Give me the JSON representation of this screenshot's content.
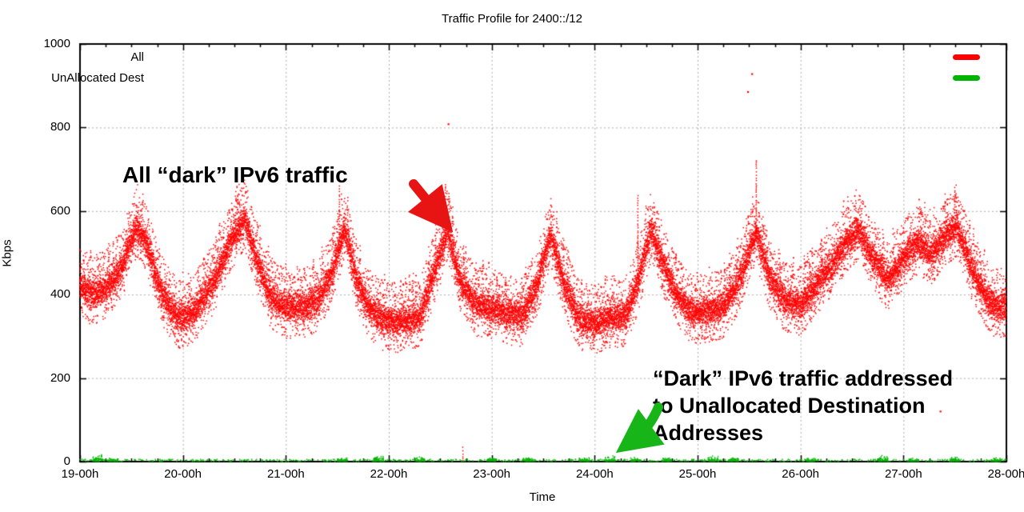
{
  "chart_data": {
    "type": "scatter",
    "title": "Traffic Profile for 2400::/12",
    "xlabel": "Time",
    "ylabel": "Kbps",
    "xlim": [
      19,
      28
    ],
    "ylim": [
      0,
      1000
    ],
    "grid": true,
    "legend_position": "top-right-inside",
    "xticks": [
      19,
      20,
      21,
      22,
      23,
      24,
      25,
      26,
      27,
      28
    ],
    "xtick_labels": [
      "19-00h",
      "20-00h",
      "21-00h",
      "22-00h",
      "23-00h",
      "24-00h",
      "25-00h",
      "26-00h",
      "27-00h",
      "28-00h"
    ],
    "yticks": [
      0,
      200,
      400,
      600,
      800,
      1000
    ],
    "ytick_labels": [
      "0",
      "200",
      "400",
      "600",
      "800",
      "1000"
    ],
    "minor_xtick_interval": 0.25,
    "series": [
      {
        "name": "All",
        "color": "#ff0000",
        "style": "dense-dot-band",
        "band_halfwidth": 32,
        "profile": [
          [
            19.0,
            430
          ],
          [
            19.1,
            400
          ],
          [
            19.25,
            415
          ],
          [
            19.4,
            460
          ],
          [
            19.55,
            565
          ],
          [
            19.65,
            520
          ],
          [
            19.8,
            400
          ],
          [
            19.95,
            345
          ],
          [
            20.1,
            355
          ],
          [
            20.3,
            430
          ],
          [
            20.45,
            520
          ],
          [
            20.6,
            585
          ],
          [
            20.72,
            480
          ],
          [
            20.85,
            395
          ],
          [
            21.0,
            370
          ],
          [
            21.15,
            370
          ],
          [
            21.3,
            385
          ],
          [
            21.45,
            450
          ],
          [
            21.57,
            560
          ],
          [
            21.68,
            440
          ],
          [
            21.8,
            370
          ],
          [
            21.95,
            340
          ],
          [
            22.1,
            335
          ],
          [
            22.3,
            345
          ],
          [
            22.45,
            460
          ],
          [
            22.57,
            555
          ],
          [
            22.7,
            430
          ],
          [
            22.85,
            375
          ],
          [
            23.0,
            370
          ],
          [
            23.15,
            355
          ],
          [
            23.3,
            350
          ],
          [
            23.45,
            430
          ],
          [
            23.57,
            545
          ],
          [
            23.7,
            430
          ],
          [
            23.85,
            340
          ],
          [
            24.0,
            330
          ],
          [
            24.15,
            345
          ],
          [
            24.3,
            350
          ],
          [
            24.42,
            430
          ],
          [
            24.55,
            555
          ],
          [
            24.67,
            470
          ],
          [
            24.8,
            395
          ],
          [
            24.95,
            355
          ],
          [
            25.1,
            360
          ],
          [
            25.25,
            370
          ],
          [
            25.4,
            430
          ],
          [
            25.57,
            550
          ],
          [
            25.7,
            440
          ],
          [
            25.85,
            385
          ],
          [
            26.0,
            375
          ],
          [
            26.15,
            420
          ],
          [
            26.3,
            470
          ],
          [
            26.45,
            530
          ],
          [
            26.57,
            550
          ],
          [
            26.7,
            490
          ],
          [
            26.85,
            435
          ],
          [
            27.0,
            490
          ],
          [
            27.15,
            525
          ],
          [
            27.28,
            495
          ],
          [
            27.42,
            545
          ],
          [
            27.52,
            560
          ],
          [
            27.65,
            470
          ],
          [
            27.8,
            395
          ],
          [
            27.9,
            370
          ],
          [
            28.0,
            375
          ]
        ],
        "spikes": [
          [
            21.52,
            660
          ],
          [
            22.55,
            665
          ],
          [
            24.42,
            640
          ],
          [
            25.57,
            722
          ],
          [
            27.5,
            660
          ]
        ],
        "low_streaks": [
          [
            22.72,
            2,
            38
          ]
        ],
        "outliers": [
          [
            21.45,
            690
          ],
          [
            22.58,
            808
          ],
          [
            25.49,
            885
          ],
          [
            25.53,
            928
          ],
          [
            27.36,
            120
          ]
        ]
      },
      {
        "name": "UnAllocated Dest",
        "color": "#00b400",
        "style": "sparse-dots-near-zero",
        "base_range": [
          0,
          5
        ],
        "clusters": [
          [
            19.17,
            16
          ],
          [
            19.32,
            8
          ],
          [
            21.55,
            8
          ],
          [
            21.9,
            14
          ],
          [
            22.3,
            10
          ],
          [
            23.0,
            8
          ],
          [
            23.35,
            12
          ],
          [
            23.9,
            10
          ],
          [
            24.15,
            14
          ],
          [
            24.4,
            12
          ],
          [
            24.7,
            8
          ],
          [
            25.15,
            14
          ],
          [
            25.35,
            10
          ],
          [
            26.1,
            8
          ],
          [
            26.8,
            14
          ],
          [
            27.1,
            8
          ],
          [
            27.5,
            12
          ],
          [
            27.9,
            8
          ]
        ]
      }
    ]
  },
  "annotations": {
    "all_dark": {
      "text": "All “dark” IPv6 traffic",
      "arrow_color": "#e81313"
    },
    "unallocated": {
      "line1": "“Dark” IPv6 traffic addressed",
      "line2": "to Unallocated Destination",
      "line3": "Addresses",
      "arrow_color": "#17b517"
    }
  }
}
